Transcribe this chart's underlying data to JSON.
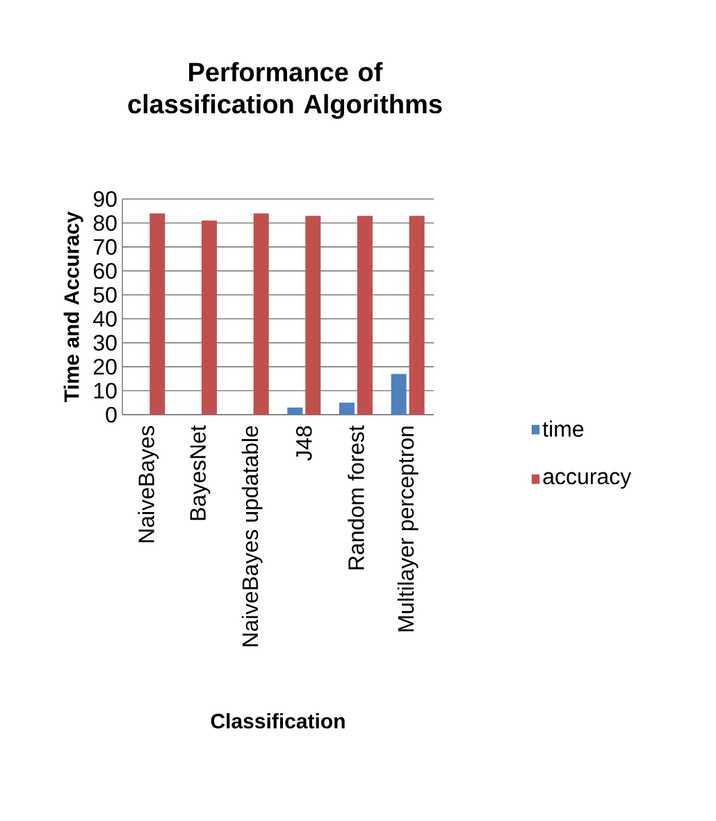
{
  "chart_data": {
    "type": "bar",
    "title": "Performance of classification Algorithms",
    "xlabel": "Classification",
    "ylabel": "Time and Accuracy",
    "categories": [
      "NaiveBayes",
      "BayesNet",
      "NaiveBayes updatable",
      "J48",
      "Random forest",
      "Multilayer perceptron"
    ],
    "series": [
      {
        "name": "time",
        "color": "#4f81bd",
        "values": [
          0,
          0,
          0,
          3,
          5,
          17
        ]
      },
      {
        "name": "accuracy",
        "color": "#c0504d",
        "values": [
          84,
          81,
          84,
          83,
          83,
          83
        ]
      }
    ],
    "ylim": [
      0,
      90
    ],
    "yticks": [
      0,
      10,
      20,
      30,
      40,
      50,
      60,
      70,
      80,
      90
    ],
    "grid": "y",
    "legend": "right"
  }
}
